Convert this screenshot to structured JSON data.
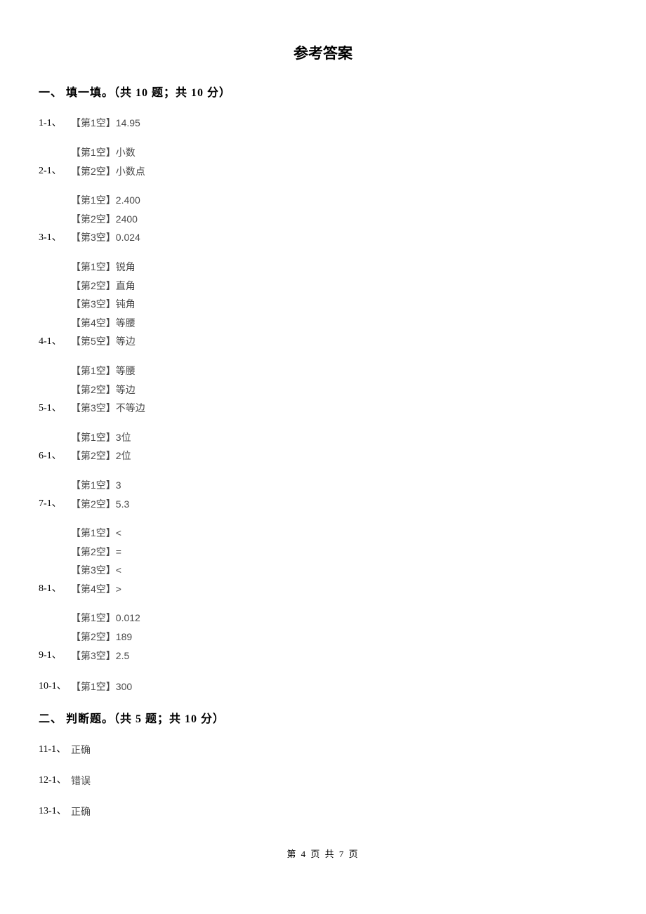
{
  "page_title": "参考答案",
  "sections": [
    {
      "header": "一、 填一填。（共 10 题；共 10 分）",
      "questions": [
        {
          "number": "1-1、",
          "answers": [
            "【第1空】14.95"
          ]
        },
        {
          "number": "2-1、",
          "answers": [
            "【第1空】小数",
            "【第2空】小数点"
          ]
        },
        {
          "number": "3-1、",
          "answers": [
            "【第1空】2.400",
            "【第2空】2400",
            "【第3空】0.024"
          ]
        },
        {
          "number": "4-1、",
          "answers": [
            "【第1空】锐角",
            "【第2空】直角",
            "【第3空】钝角",
            "【第4空】等腰",
            "【第5空】等边"
          ]
        },
        {
          "number": "5-1、",
          "answers": [
            "【第1空】等腰",
            "【第2空】等边",
            "【第3空】不等边"
          ]
        },
        {
          "number": "6-1、",
          "answers": [
            "【第1空】3位",
            "【第2空】2位"
          ]
        },
        {
          "number": "7-1、",
          "answers": [
            "【第1空】3",
            "【第2空】5.3"
          ]
        },
        {
          "number": "8-1、",
          "answers": [
            "【第1空】<",
            "【第2空】=",
            "【第3空】<",
            "【第4空】>"
          ]
        },
        {
          "number": "9-1、",
          "answers": [
            "【第1空】0.012",
            "【第2空】189",
            "【第3空】2.5"
          ]
        },
        {
          "number": "10-1、",
          "answers": [
            "【第1空】300"
          ]
        }
      ]
    },
    {
      "header": "二、 判断题。（共 5 题；共 10 分）",
      "questions": [
        {
          "number": "11-1、",
          "answers": [
            "正确"
          ]
        },
        {
          "number": "12-1、",
          "answers": [
            "错误"
          ]
        },
        {
          "number": "13-1、",
          "answers": [
            "正确"
          ]
        }
      ]
    }
  ],
  "footer": "第 4 页 共 7 页",
  "colors": {
    "background": "#ffffff",
    "text": "#000000",
    "answer_text": "#4a4a4a"
  },
  "typography": {
    "title_fontsize": 21,
    "section_header_fontsize": 16,
    "body_fontsize": 14,
    "footer_fontsize": 13
  }
}
